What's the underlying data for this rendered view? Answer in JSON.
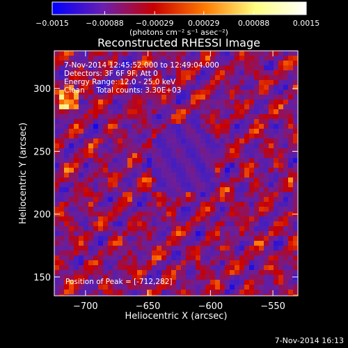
{
  "chart_data": {
    "type": "heatmap",
    "title": "Reconstructed RHESSI Image",
    "xlabel": "Heliocentric X (arcsec)",
    "ylabel": "Heliocentric Y (arcsec)",
    "xlim": [
      -725,
      -530
    ],
    "ylim": [
      135,
      330
    ],
    "x_ticks": [
      -700,
      -650,
      -600,
      -550
    ],
    "y_ticks": [
      150,
      200,
      250,
      300
    ],
    "x_tick_labels": [
      "−700",
      "−650",
      "−600",
      "−550"
    ],
    "y_tick_labels": [
      "150",
      "200",
      "250",
      "300"
    ],
    "colorbar": {
      "range": [
        -0.0015,
        0.0015
      ],
      "tick_labels": [
        "−0.0015",
        "−0.00088",
        "−0.00029",
        "0.00029",
        "0.00088",
        "0.0015"
      ],
      "ticks": [
        -0.0015,
        -0.00088,
        -0.00029,
        0.00029,
        0.00088,
        0.0015
      ],
      "units": "(photons cm⁻² s⁻¹ asec⁻²)",
      "colors": [
        "#0000ff",
        "#6a1fb0",
        "#c80000",
        "#ff7a00",
        "#ffff80",
        "#ffffff"
      ]
    },
    "peak": [
      -712,
      282
    ],
    "annotations": [
      "7-Nov-2014 12:45:52.000 to 12:49:04.000",
      "Detectors: 3F 6F 9F, Att 0",
      "Energy Range: 12.0 - 25.0 keV",
      "Clean     Total counts: 3.30E+03",
      "Position of Peak = [-712,282]"
    ],
    "grid": false
  },
  "footer": "7-Nov-2014 16:13"
}
